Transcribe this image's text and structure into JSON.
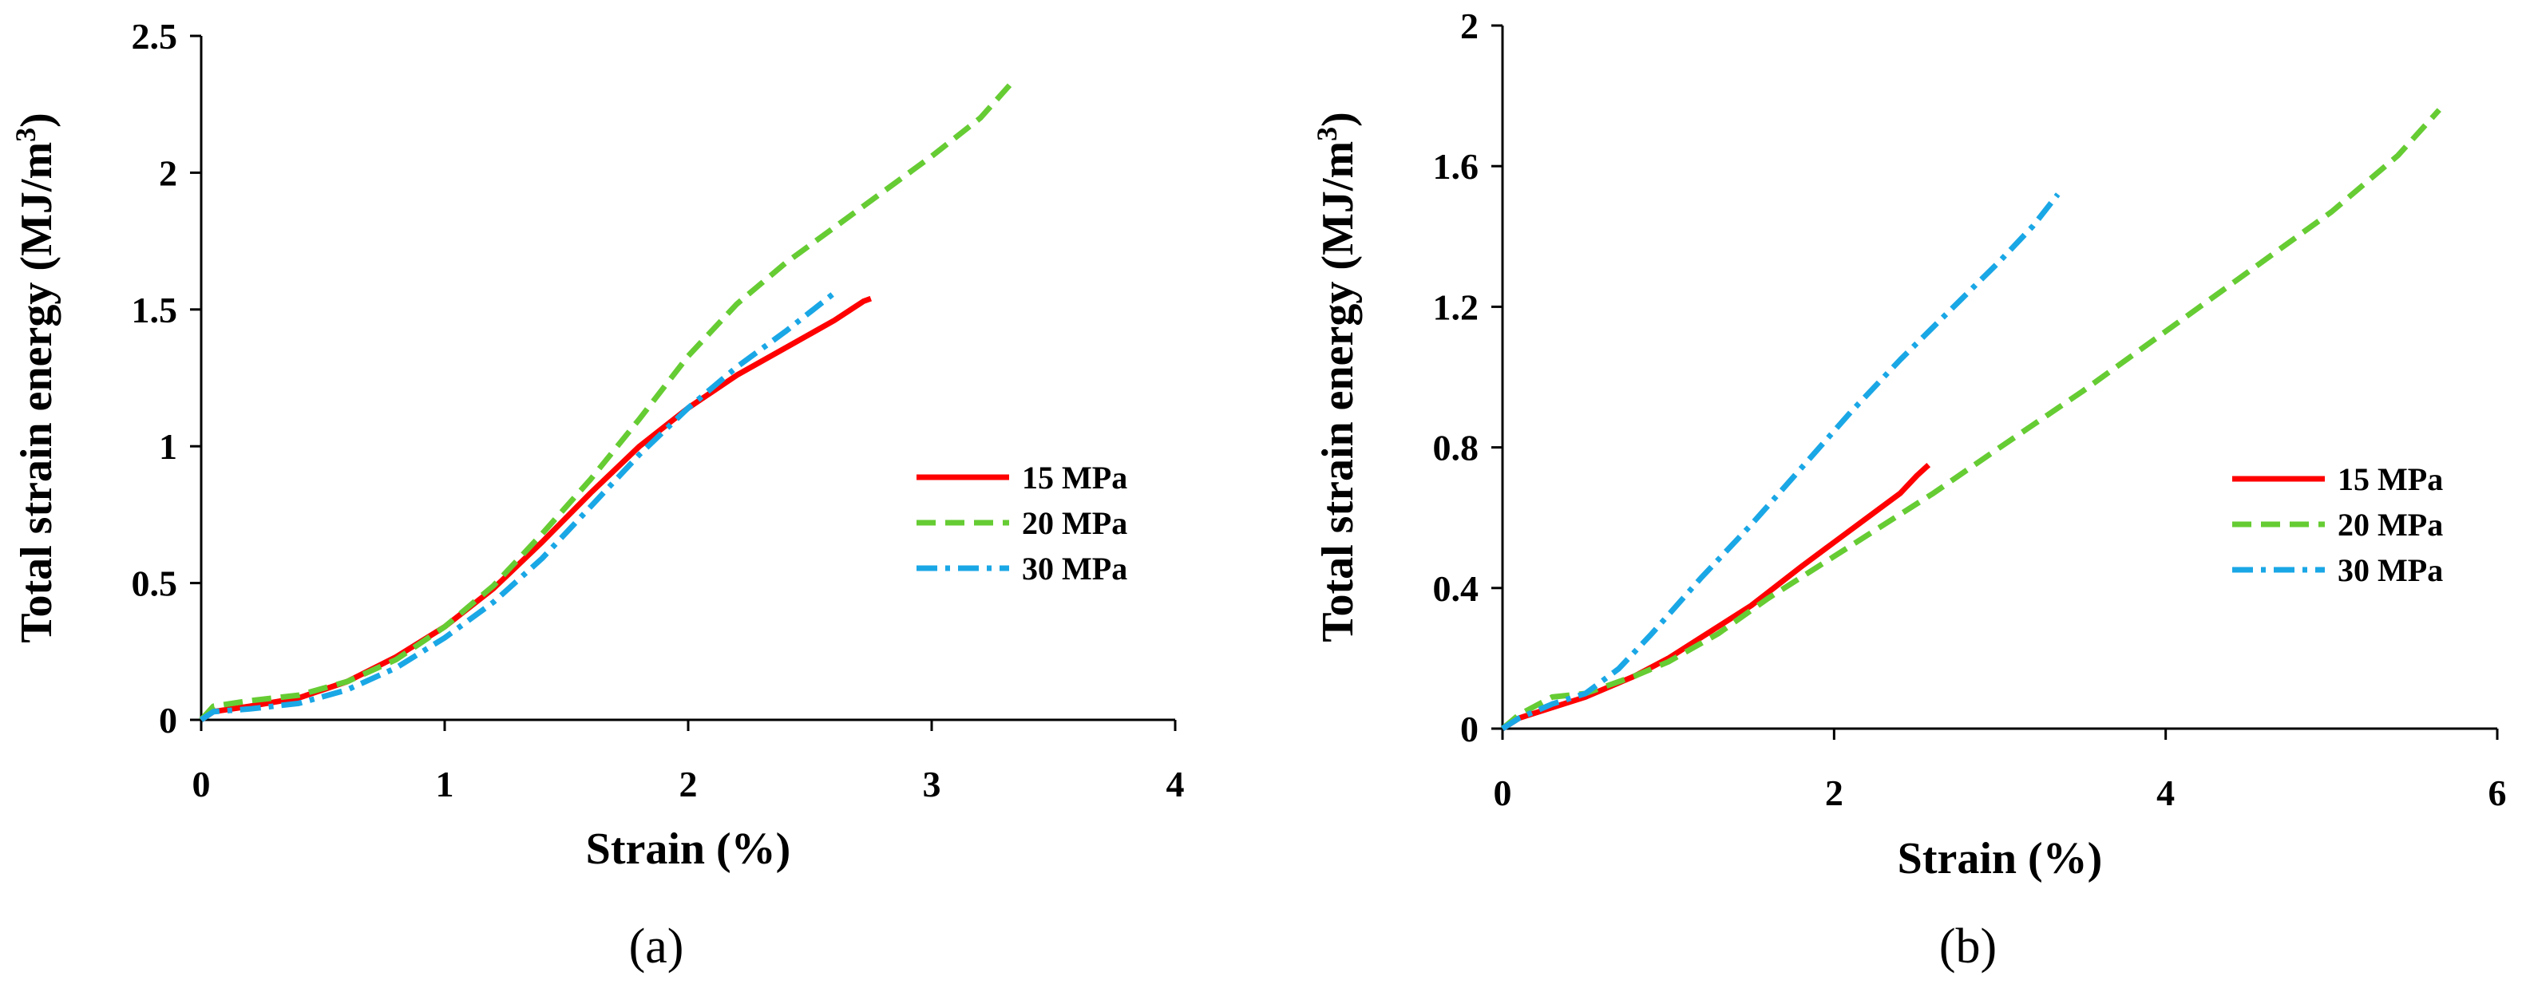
{
  "chart_data": [
    {
      "type": "line",
      "panel_label": "(a)",
      "xlabel": "Strain (%)",
      "ylabel": "Total strain energy (MJ/m",
      "ylabel_sup": "3",
      "ylabel_close": ")",
      "xlim": [
        0,
        4
      ],
      "ylim": [
        0,
        2.5
      ],
      "xticks": [
        0,
        1,
        2,
        3,
        4
      ],
      "xtick_labels": [
        "0",
        "1",
        "2",
        "3",
        "4"
      ],
      "yticks": [
        0,
        0.5,
        1,
        1.5,
        2,
        2.5
      ],
      "ytick_labels": [
        "0",
        "0.5",
        "1",
        "1.5",
        "2",
        "2.5"
      ],
      "legend_position": "right",
      "series": [
        {
          "name": "15 MPa",
          "color": "#ff0000",
          "style": "solid",
          "points": [
            [
              0,
              0
            ],
            [
              0.05,
              0.03
            ],
            [
              0.2,
              0.05
            ],
            [
              0.4,
              0.08
            ],
            [
              0.6,
              0.14
            ],
            [
              0.8,
              0.23
            ],
            [
              1.0,
              0.34
            ],
            [
              1.2,
              0.48
            ],
            [
              1.4,
              0.65
            ],
            [
              1.6,
              0.83
            ],
            [
              1.8,
              1.0
            ],
            [
              2.0,
              1.14
            ],
            [
              2.2,
              1.26
            ],
            [
              2.4,
              1.36
            ],
            [
              2.6,
              1.46
            ],
            [
              2.72,
              1.53
            ],
            [
              2.75,
              1.54
            ]
          ]
        },
        {
          "name": "20 MPa",
          "color": "#66cc33",
          "style": "dashed",
          "points": [
            [
              0,
              0
            ],
            [
              0.05,
              0.05
            ],
            [
              0.2,
              0.07
            ],
            [
              0.4,
              0.09
            ],
            [
              0.6,
              0.14
            ],
            [
              0.8,
              0.22
            ],
            [
              1.0,
              0.34
            ],
            [
              1.2,
              0.49
            ],
            [
              1.4,
              0.68
            ],
            [
              1.6,
              0.88
            ],
            [
              1.8,
              1.1
            ],
            [
              2.0,
              1.33
            ],
            [
              2.2,
              1.52
            ],
            [
              2.4,
              1.67
            ],
            [
              2.6,
              1.8
            ],
            [
              2.8,
              1.93
            ],
            [
              3.0,
              2.06
            ],
            [
              3.2,
              2.2
            ],
            [
              3.33,
              2.33
            ]
          ]
        },
        {
          "name": "30 MPa",
          "color": "#1aa7e6",
          "style": "dashdot",
          "points": [
            [
              0,
              0
            ],
            [
              0.05,
              0.03
            ],
            [
              0.2,
              0.04
            ],
            [
              0.4,
              0.06
            ],
            [
              0.6,
              0.11
            ],
            [
              0.8,
              0.19
            ],
            [
              1.0,
              0.3
            ],
            [
              1.2,
              0.43
            ],
            [
              1.4,
              0.59
            ],
            [
              1.6,
              0.78
            ],
            [
              1.8,
              0.97
            ],
            [
              2.0,
              1.14
            ],
            [
              2.2,
              1.29
            ],
            [
              2.4,
              1.42
            ],
            [
              2.6,
              1.56
            ]
          ]
        }
      ]
    },
    {
      "type": "line",
      "panel_label": "(b)",
      "xlabel": "Strain (%)",
      "ylabel": "Total strain energy (MJ/m",
      "ylabel_sup": "3",
      "ylabel_close": ")",
      "xlim": [
        0,
        6
      ],
      "ylim": [
        0,
        2
      ],
      "xticks": [
        0,
        2,
        4,
        6
      ],
      "xtick_labels": [
        "0",
        "2",
        "4",
        "6"
      ],
      "yticks": [
        0,
        0.4,
        0.8,
        1.2,
        1.6,
        2
      ],
      "ytick_labels": [
        "0",
        "0.4",
        "0.8",
        "1.2",
        "1.6",
        "2"
      ],
      "legend_position": "right",
      "series": [
        {
          "name": "15 MPa",
          "color": "#ff0000",
          "style": "solid",
          "points": [
            [
              0,
              0
            ],
            [
              0.1,
              0.03
            ],
            [
              0.3,
              0.06
            ],
            [
              0.5,
              0.09
            ],
            [
              0.8,
              0.15
            ],
            [
              1.0,
              0.2
            ],
            [
              1.2,
              0.26
            ],
            [
              1.5,
              0.35
            ],
            [
              1.8,
              0.46
            ],
            [
              2.0,
              0.53
            ],
            [
              2.2,
              0.6
            ],
            [
              2.4,
              0.67
            ],
            [
              2.5,
              0.72
            ],
            [
              2.57,
              0.75
            ]
          ]
        },
        {
          "name": "20 MPa",
          "color": "#66cc33",
          "style": "dashed",
          "points": [
            [
              0,
              0
            ],
            [
              0.1,
              0.04
            ],
            [
              0.3,
              0.09
            ],
            [
              0.5,
              0.1
            ],
            [
              0.8,
              0.15
            ],
            [
              1.0,
              0.19
            ],
            [
              1.3,
              0.27
            ],
            [
              1.6,
              0.37
            ],
            [
              2.0,
              0.49
            ],
            [
              2.2,
              0.55
            ],
            [
              2.6,
              0.67
            ],
            [
              3.0,
              0.8
            ],
            [
              3.5,
              0.96
            ],
            [
              4.0,
              1.13
            ],
            [
              4.5,
              1.3
            ],
            [
              5.0,
              1.47
            ],
            [
              5.4,
              1.63
            ],
            [
              5.65,
              1.76
            ]
          ]
        },
        {
          "name": "30 MPa",
          "color": "#1aa7e6",
          "style": "dashdot",
          "points": [
            [
              0,
              0
            ],
            [
              0.1,
              0.03
            ],
            [
              0.3,
              0.07
            ],
            [
              0.5,
              0.1
            ],
            [
              0.7,
              0.17
            ],
            [
              0.9,
              0.27
            ],
            [
              1.2,
              0.43
            ],
            [
              1.5,
              0.58
            ],
            [
              1.8,
              0.74
            ],
            [
              2.1,
              0.9
            ],
            [
              2.4,
              1.05
            ],
            [
              2.7,
              1.19
            ],
            [
              3.0,
              1.33
            ],
            [
              3.2,
              1.43
            ],
            [
              3.35,
              1.52
            ]
          ]
        }
      ]
    }
  ]
}
